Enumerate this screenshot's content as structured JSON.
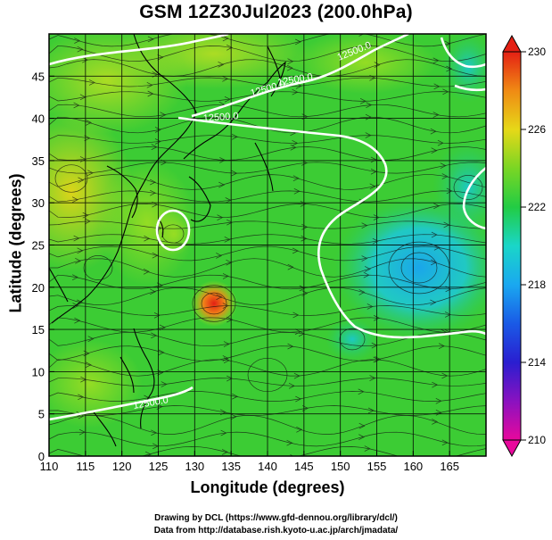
{
  "title": "GSM 12Z30Jul2023 (200.0hPa)",
  "x_axis": {
    "label": "Longitude (degrees)",
    "ticks": [
      "110",
      "115",
      "120",
      "125",
      "130",
      "135",
      "140",
      "145",
      "150",
      "155",
      "160",
      "165"
    ],
    "range": [
      110,
      170
    ]
  },
  "y_axis": {
    "label": "Latitude  (degrees)",
    "ticks": [
      "0",
      "5",
      "10",
      "15",
      "20",
      "25",
      "30",
      "35",
      "40",
      "45"
    ],
    "range": [
      0,
      50
    ]
  },
  "colorbar": {
    "ticks": [
      "210",
      "214",
      "218",
      "222",
      "226",
      "230"
    ],
    "range": [
      210,
      230
    ],
    "colors": [
      "#e8089c",
      "#6a16c8",
      "#1a2ad8",
      "#1c8ef0",
      "#18d6d0",
      "#22cc44",
      "#6ad62a",
      "#c4e018",
      "#f4c418",
      "#f07a12",
      "#e42014"
    ]
  },
  "contour_labels": [
    "12500.0",
    "12500.0",
    "12500.0",
    "12500.0",
    "12500.0"
  ],
  "credits": {
    "line1": "Drawing by DCL (https://www.gfd-dennou.org/library/dcl/)",
    "line2": "Data from http://database.rish.kyoto-u.ac.jp/arch/jmadata/"
  }
}
